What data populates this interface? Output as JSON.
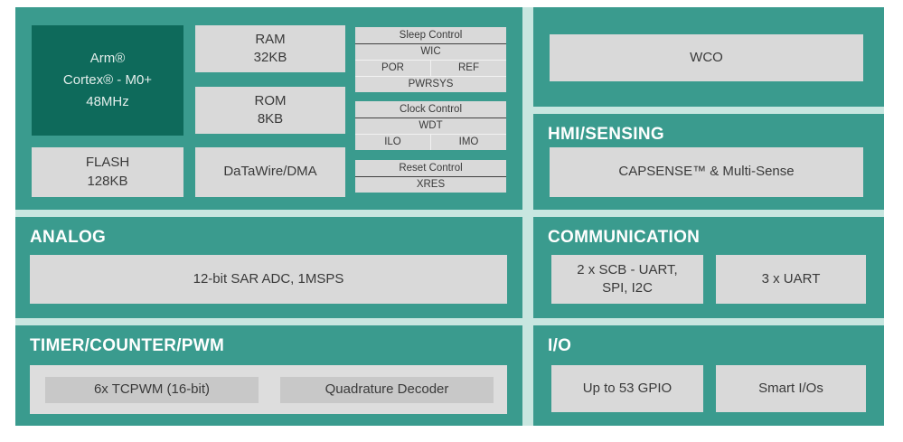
{
  "colors": {
    "panel_teal": "#3a9b8e",
    "cpu_dark_teal": "#0e6a5b",
    "gap_mint": "#c8e6e0",
    "block_gray": "#d9d9d9",
    "inner_block_gray": "#c8c8c8",
    "group_box_gray": "#dddddd",
    "block_text": "#3a3a3a",
    "header_text": "#ffffff"
  },
  "cpu_panel": {
    "cpu": "Arm®\nCortex® - M0+\n48MHz",
    "ram": "RAM\n32KB",
    "rom": "ROM\n8KB",
    "flash": "FLASH\n128KB",
    "datawire": "DaTaWire/DMA",
    "sleep_control": {
      "title": "Sleep Control",
      "wic": "WIC",
      "por": "POR",
      "ref": "REF",
      "pwrsys": "PWRSYS"
    },
    "clock_control": {
      "title": "Clock Control",
      "wdt": "WDT",
      "ilo": "ILO",
      "imo": "IMO"
    },
    "reset_control": {
      "title": "Reset Control",
      "xres": "XRES"
    }
  },
  "wco_panel": {
    "wco": "WCO"
  },
  "hmi_panel": {
    "title": "HMI/SENSING",
    "capsense": "CAPSENSE™ & Multi-Sense"
  },
  "analog_panel": {
    "title": "ANALOG",
    "sar_adc": "12-bit SAR ADC, 1MSPS"
  },
  "comm_panel": {
    "title": "COMMUNICATION",
    "scb": "2 x SCB - UART,\nSPI, I2C",
    "uart": "3 x UART"
  },
  "timer_panel": {
    "title": "TIMER/COUNTER/PWM",
    "tcpwm": "6x TCPWM (16-bit)",
    "quadrature": "Quadrature Decoder"
  },
  "io_panel": {
    "title": "I/O",
    "gpio": "Up to 53 GPIO",
    "smart_io": "Smart I/Os"
  }
}
